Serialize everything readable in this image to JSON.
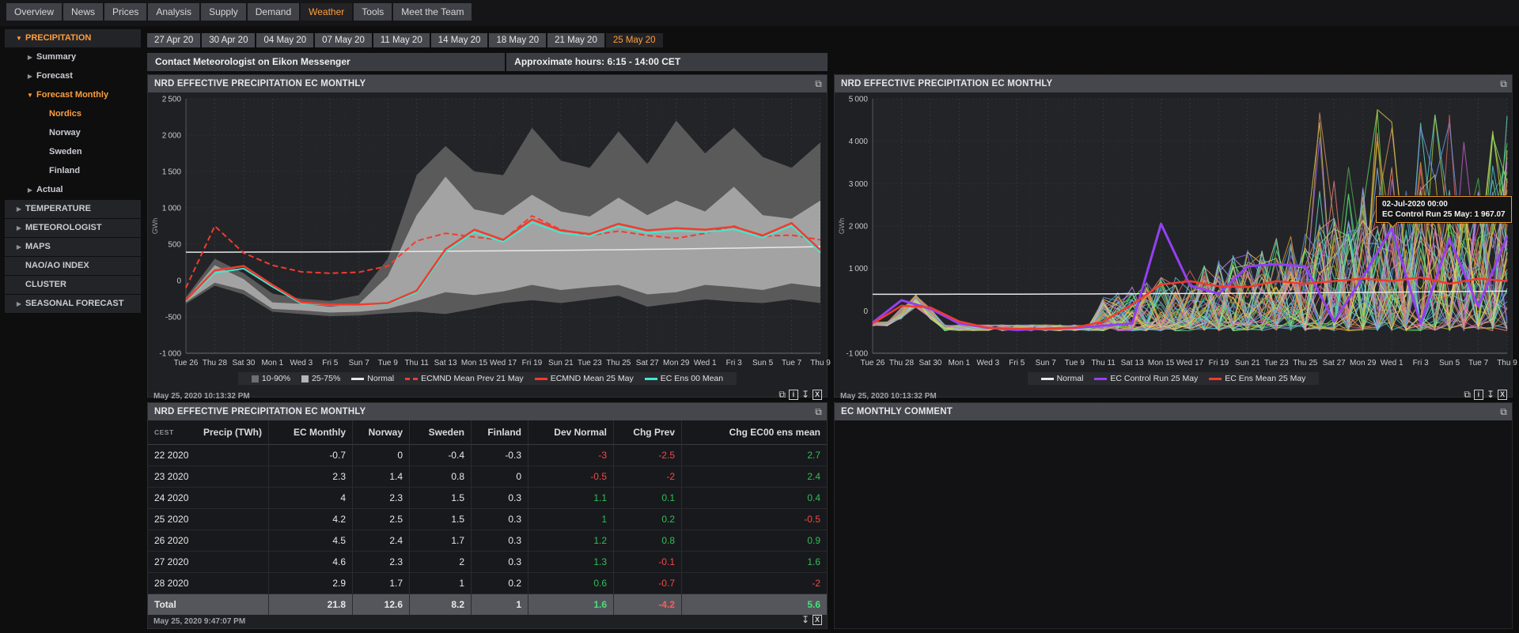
{
  "nav": {
    "items": [
      "Overview",
      "News",
      "Prices",
      "Analysis",
      "Supply",
      "Demand",
      "Weather",
      "Tools",
      "Meet the Team"
    ],
    "active": "Weather"
  },
  "sidebar": {
    "items": [
      {
        "label": "PRECIPITATION",
        "level": 0,
        "arrow": "down",
        "orange": true
      },
      {
        "label": "Summary",
        "level": 1,
        "arrow": "right",
        "orange": false
      },
      {
        "label": "Forecast",
        "level": 1,
        "arrow": "right",
        "orange": false
      },
      {
        "label": "Forecast Monthly",
        "level": 1,
        "arrow": "down",
        "orange": true
      },
      {
        "label": "Nordics",
        "level": 2,
        "arrow": null,
        "orange": true
      },
      {
        "label": "Norway",
        "level": 2,
        "arrow": null,
        "orange": false
      },
      {
        "label": "Sweden",
        "level": 2,
        "arrow": null,
        "orange": false
      },
      {
        "label": "Finland",
        "level": 2,
        "arrow": null,
        "orange": false
      },
      {
        "label": "Actual",
        "level": 1,
        "arrow": "right",
        "orange": false
      },
      {
        "label": "TEMPERATURE",
        "level": 0,
        "arrow": "right",
        "orange": false
      },
      {
        "label": "METEOROLOGIST",
        "level": 0,
        "arrow": "right",
        "orange": false
      },
      {
        "label": "MAPS",
        "level": 0,
        "arrow": "right",
        "orange": false
      },
      {
        "label": "NAO/AO INDEX",
        "level": 0,
        "arrow": null,
        "orange": false
      },
      {
        "label": "CLUSTER",
        "level": 0,
        "arrow": null,
        "orange": false
      },
      {
        "label": "SEASONAL FORECAST",
        "level": 0,
        "arrow": "right",
        "orange": false
      }
    ]
  },
  "date_tabs": {
    "items": [
      "27 Apr 20",
      "30 Apr 20",
      "04 May 20",
      "07 May 20",
      "11 May 20",
      "14 May 20",
      "18 May 20",
      "21 May 20",
      "25 May 20"
    ],
    "active": "25 May 20"
  },
  "info_bar": {
    "contact": "Contact Meteorologist on Eikon Messenger",
    "hours": "Approximate hours: 6:15 - 14:00 CET"
  },
  "colors": {
    "accent_orange": "#ff9e3d",
    "positive": "#2fbf57",
    "negative": "#f24949",
    "red_line": "#f23b2e",
    "cyan_line": "#3fe8d0",
    "purple_line": "#9440f3",
    "normal_line": "#e8e8e8",
    "band_outer": "#5f5f5f",
    "band_inner": "#a9a9a9"
  },
  "chart_data": [
    {
      "type": "area",
      "subtype": "fan-chart-with-lines",
      "title": "NRD EFFECTIVE PRECIPITATION EC MONTHLY",
      "xlabel": "",
      "ylabel": "GWh",
      "ylim": [
        -1000,
        2500
      ],
      "ytick_step": 500,
      "grid": true,
      "legend_position": "bottom",
      "timestamp": "May 25, 2020 10:13:32 PM",
      "categories": [
        "Tue 26",
        "Thu 28",
        "Sat 30",
        "Mon 1",
        "Wed 3",
        "Fri 5",
        "Sun 7",
        "Tue 9",
        "Thu 11",
        "Sat 13",
        "Mon 15",
        "Wed 17",
        "Fri 19",
        "Sun 21",
        "Tue 23",
        "Thu 25",
        "Sat 27",
        "Mon 29",
        "Wed 1",
        "Fri 3",
        "Sun 5",
        "Tue 7",
        "Thu 9"
      ],
      "bands": [
        {
          "name": "10-90%",
          "color": "#5f5f5f",
          "low": [
            -320,
            -70,
            -190,
            -430,
            -460,
            -490,
            -480,
            -450,
            -430,
            -460,
            -390,
            -310,
            -270,
            -310,
            -260,
            -210,
            -360,
            -310,
            -260,
            -290,
            -310,
            -260,
            -310
          ],
          "high": [
            -230,
            300,
            100,
            -180,
            -250,
            -280,
            -200,
            300,
            1450,
            1850,
            1500,
            1450,
            2100,
            1650,
            1550,
            2050,
            1600,
            2200,
            1750,
            2100,
            1700,
            1550,
            1900
          ]
        },
        {
          "name": "25-75%",
          "color": "#a9a9a9",
          "low": [
            -295,
            -30,
            -130,
            -390,
            -410,
            -440,
            -430,
            -390,
            -280,
            -160,
            -200,
            -150,
            -60,
            -130,
            -90,
            -60,
            -190,
            -160,
            -60,
            -90,
            -130,
            -40,
            -90
          ],
          "high": [
            -255,
            210,
            20,
            -300,
            -320,
            -360,
            -320,
            60,
            900,
            1430,
            980,
            900,
            1180,
            950,
            880,
            1140,
            900,
            1100,
            950,
            1290,
            900,
            850,
            1100
          ]
        }
      ],
      "series": [
        {
          "name": "Normal",
          "color": "#e8e8e8",
          "width": 1.5,
          "dash": null,
          "values": [
            390,
            390,
            391,
            392,
            393,
            394,
            396,
            398,
            400,
            403,
            406,
            409,
            412,
            416,
            420,
            424,
            429,
            434,
            440,
            446,
            452,
            459,
            466
          ]
        },
        {
          "name": "ECMND Mean Prev 21 May",
          "color": "#f23b2e",
          "width": 2,
          "dash": "7,4",
          "values": [
            -100,
            750,
            380,
            210,
            120,
            100,
            115,
            200,
            545,
            650,
            600,
            555,
            890,
            700,
            620,
            680,
            620,
            580,
            650,
            750,
            610,
            625,
            560
          ]
        },
        {
          "name": "EC Ens 00 Mean",
          "color": "#3fe8d0",
          "width": 2,
          "dash": null,
          "values": [
            -285,
            105,
            165,
            -85,
            -315,
            -335,
            -335,
            -320,
            -165,
            400,
            665,
            530,
            800,
            655,
            610,
            745,
            655,
            685,
            665,
            705,
            590,
            755,
            385
          ]
        },
        {
          "name": "ECMND Mean 25 May",
          "color": "#f23b2e",
          "width": 2.5,
          "dash": null,
          "values": [
            -270,
            140,
            200,
            -60,
            -300,
            -330,
            -330,
            -310,
            -140,
            430,
            700,
            560,
            840,
            690,
            640,
            780,
            690,
            720,
            700,
            740,
            620,
            790,
            420
          ]
        }
      ],
      "legend": [
        {
          "swatch": "box",
          "color": "#6e6e6e",
          "label": "10-90%"
        },
        {
          "swatch": "box",
          "color": "#b4b4b4",
          "label": "25-75%"
        },
        {
          "swatch": "line",
          "color": "#e8e8e8",
          "label": "Normal"
        },
        {
          "swatch": "dash",
          "color": "#f23b2e",
          "label": "ECMND Mean Prev 21 May"
        },
        {
          "swatch": "line",
          "color": "#f23b2e",
          "label": "ECMND Mean 25 May"
        },
        {
          "swatch": "line",
          "color": "#3fe8d0",
          "label": "EC Ens 00 Mean"
        }
      ]
    },
    {
      "type": "line",
      "subtype": "ensemble-spaghetti",
      "title": "NRD EFFECTIVE PRECIPITATION EC MONTHLY",
      "xlabel": "",
      "ylabel": "GWh",
      "ylim": [
        -1000,
        5000
      ],
      "ytick_step": 1000,
      "grid": true,
      "legend_position": "bottom",
      "timestamp": "May 25, 2020 10:13:32 PM",
      "categories": [
        "Tue 26",
        "Thu 28",
        "Sat 30",
        "Mon 1",
        "Wed 3",
        "Fri 5",
        "Sun 7",
        "Tue 9",
        "Thu 11",
        "Sat 13",
        "Mon 15",
        "Wed 17",
        "Fri 19",
        "Sun 21",
        "Tue 23",
        "Thu 25",
        "Sat 27",
        "Mon 29",
        "Wed 1",
        "Fri 3",
        "Sun 5",
        "Tue 7",
        "Thu 9"
      ],
      "ensemble": {
        "count": 48,
        "note": "unlabeled EC ensemble member runs, start ~-300 GWh, trough ~-400 through early June, diverging up to ~4800 GWh by mid July",
        "palette": [
          "#41c9b8",
          "#4daf4a",
          "#e89b30",
          "#d9cf45",
          "#4a8fd9",
          "#c45fd0",
          "#57d957",
          "#e05c5c",
          "#52c7e0",
          "#d9925f",
          "#9a6ae0",
          "#a8cf3d",
          "#ff8f66",
          "#5fd9a8",
          "#d9b330",
          "#7fb8f0",
          "#ef8080",
          "#66e0c2",
          "#cfe08a",
          "#cf8fe0",
          "#f2cf5a",
          "#6a9ae8",
          "#8fe066",
          "#e06a9a"
        ]
      },
      "series": [
        {
          "name": "Normal",
          "color": "#e8e8e8",
          "width": 1.5,
          "dash": null,
          "values": [
            390,
            390,
            391,
            392,
            393,
            394,
            396,
            398,
            400,
            403,
            406,
            409,
            412,
            416,
            420,
            424,
            429,
            434,
            440,
            446,
            452,
            459,
            466
          ]
        },
        {
          "name": "EC Control Run 25 May",
          "color": "#9440f3",
          "width": 3,
          "dash": null,
          "values": [
            -280,
            250,
            50,
            -300,
            -400,
            -450,
            -420,
            -400,
            -350,
            -300,
            2050,
            600,
            400,
            1050,
            1100,
            1050,
            -250,
            800,
            1950,
            -300,
            1700,
            100,
            1750
          ]
        },
        {
          "name": "EC Ens Mean 25 May",
          "color": "#f23b2e",
          "width": 2.5,
          "dash": null,
          "values": [
            -300,
            120,
            80,
            -250,
            -400,
            -420,
            -420,
            -400,
            -250,
            150,
            620,
            700,
            580,
            560,
            700,
            640,
            700,
            760,
            700,
            790,
            640,
            760,
            700
          ]
        }
      ],
      "legend": [
        {
          "swatch": "line",
          "color": "#e8e8e8",
          "label": "Normal"
        },
        {
          "swatch": "line",
          "color": "#9440f3",
          "label": "EC Control Run 25 May"
        },
        {
          "swatch": "line",
          "color": "#f23b2e",
          "label": "EC Ens Mean 25 May"
        }
      ],
      "tooltip": {
        "line1": "02-Jul-2020 00:00",
        "line2": "EC Control Run 25 May: 1 967.07"
      }
    }
  ],
  "table_panel": {
    "title": "NRD EFFECTIVE PRECIPITATION EC MONTHLY",
    "tz_label": "CEST",
    "unit_label": "Precip (TWh)",
    "columns": [
      "EC Monthly",
      "Norway",
      "Sweden",
      "Finland",
      "Dev Normal",
      "Chg Prev",
      "Chg EC00 ens mean"
    ],
    "colored_from_col": 4,
    "rows": [
      {
        "label": "22 2020",
        "values": [
          "-0.7",
          "0",
          "-0.4",
          "-0.3",
          "-3",
          "-2.5",
          "2.7"
        ]
      },
      {
        "label": "23 2020",
        "values": [
          "2.3",
          "1.4",
          "0.8",
          "0",
          "-0.5",
          "-2",
          "2.4"
        ]
      },
      {
        "label": "24 2020",
        "values": [
          "4",
          "2.3",
          "1.5",
          "0.3",
          "1.1",
          "0.1",
          "0.4"
        ]
      },
      {
        "label": "25 2020",
        "values": [
          "4.2",
          "2.5",
          "1.5",
          "0.3",
          "1",
          "0.2",
          "-0.5"
        ]
      },
      {
        "label": "26 2020",
        "values": [
          "4.5",
          "2.4",
          "1.7",
          "0.3",
          "1.2",
          "0.8",
          "0.9"
        ]
      },
      {
        "label": "27 2020",
        "values": [
          "4.6",
          "2.3",
          "2",
          "0.3",
          "1.3",
          "-0.1",
          "1.6"
        ]
      },
      {
        "label": "28 2020",
        "values": [
          "2.9",
          "1.7",
          "1",
          "0.2",
          "0.6",
          "-0.7",
          "-2"
        ]
      }
    ],
    "total": {
      "label": "Total",
      "values": [
        "21.8",
        "12.6",
        "8.2",
        "1",
        "1.6",
        "-4.2",
        "5.6"
      ]
    },
    "timestamp": "May 25, 2020 9:47:07 PM"
  },
  "comment_panel": {
    "title": "EC MONTHLY COMMENT",
    "content": ""
  }
}
